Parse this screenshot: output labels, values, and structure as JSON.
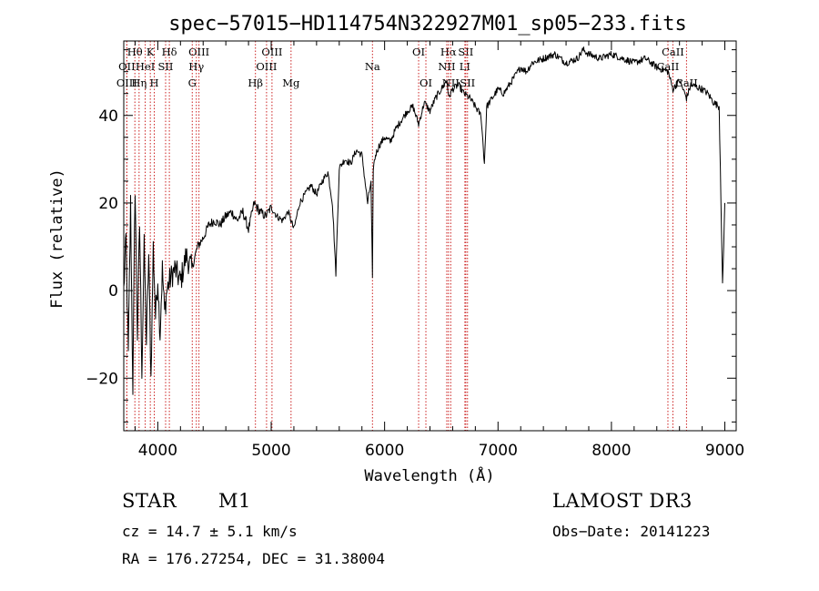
{
  "chart_data": {
    "type": "line",
    "title": "spec−57015−HD114754N322927M01_sp05−233.fits",
    "xlabel": "Wavelength (Å)",
    "ylabel": "Flux (relative)",
    "xlim": [
      3700,
      9100
    ],
    "ylim": [
      -32,
      57
    ],
    "xticks": [
      4000,
      5000,
      6000,
      7000,
      8000,
      9000
    ],
    "xtick_labels": [
      "4000",
      "5000",
      "6000",
      "7000",
      "8000",
      "9000"
    ],
    "yticks": [
      -20,
      0,
      20,
      40
    ],
    "ytick_labels": [
      "−20",
      "0",
      "20",
      "40"
    ],
    "grid": false,
    "series": [
      {
        "name": "flux",
        "x": [
          3700,
          3720,
          3740,
          3760,
          3780,
          3800,
          3820,
          3840,
          3860,
          3880,
          3900,
          3920,
          3940,
          3960,
          3980,
          4000,
          4020,
          4040,
          4060,
          4080,
          4100,
          4150,
          4200,
          4250,
          4300,
          4350,
          4400,
          4450,
          4500,
          4550,
          4600,
          4650,
          4700,
          4750,
          4800,
          4850,
          4900,
          4950,
          5000,
          5050,
          5100,
          5150,
          5200,
          5250,
          5300,
          5350,
          5400,
          5450,
          5500,
          5540,
          5570,
          5600,
          5650,
          5700,
          5750,
          5800,
          5850,
          5880,
          5893,
          5900,
          5920,
          5950,
          6000,
          6050,
          6100,
          6150,
          6200,
          6250,
          6300,
          6350,
          6400,
          6450,
          6500,
          6550,
          6563,
          6600,
          6650,
          6700,
          6750,
          6800,
          6850,
          6880,
          6900,
          6950,
          7000,
          7050,
          7100,
          7150,
          7200,
          7250,
          7300,
          7400,
          7500,
          7600,
          7700,
          7750,
          7800,
          7900,
          8000,
          8100,
          8200,
          8300,
          8400,
          8500,
          8542,
          8600,
          8662,
          8700,
          8800,
          8850,
          8900,
          8950,
          8980,
          9000
        ],
        "y": [
          0,
          12,
          -15,
          20,
          -22,
          24,
          -10,
          15,
          -18,
          10,
          -12,
          8,
          -20,
          10,
          -6,
          3,
          -10,
          5,
          -5,
          0,
          2,
          5,
          2,
          8,
          5,
          10,
          12,
          15,
          16,
          15,
          17,
          18,
          16,
          18,
          14,
          20,
          18,
          17,
          19,
          17,
          16,
          18,
          14,
          20,
          22,
          24,
          22,
          25,
          27,
          20,
          4,
          28,
          30,
          29,
          32,
          31,
          20,
          25,
          3,
          28,
          31,
          33,
          35,
          34,
          37,
          39,
          41,
          42,
          38,
          43,
          41,
          44,
          46,
          48,
          44,
          46,
          47,
          45,
          44,
          42,
          40,
          29,
          42,
          44,
          46,
          45,
          47,
          49,
          51,
          50,
          52,
          53,
          54,
          52,
          53,
          55,
          54,
          53,
          54,
          53,
          52,
          53,
          51,
          50,
          46,
          48,
          44,
          47,
          46,
          45,
          43,
          42,
          1,
          20
        ]
      }
    ],
    "emission_lines": [
      {
        "label": "Hθ",
        "x": 3798,
        "row": 1
      },
      {
        "label": "OII",
        "x": 3727,
        "row": 2
      },
      {
        "label": "OIII",
        "x": 3727,
        "row": 3
      },
      {
        "label": "K",
        "x": 3934,
        "row": 1
      },
      {
        "label": "HeI",
        "x": 3889,
        "row": 2
      },
      {
        "label": "Hη",
        "x": 3835,
        "row": 3
      },
      {
        "label": "H",
        "x": 3969,
        "row": 3
      },
      {
        "label": "SII",
        "x": 4069,
        "row": 2
      },
      {
        "label": "Hδ",
        "x": 4102,
        "row": 1
      },
      {
        "label": "OIII",
        "x": 4363,
        "row": 1
      },
      {
        "label": "Hγ",
        "x": 4340,
        "row": 2
      },
      {
        "label": "G",
        "x": 4304,
        "row": 3
      },
      {
        "label": "Hβ",
        "x": 4861,
        "row": 3
      },
      {
        "label": "OIII",
        "x": 5007,
        "row": 1
      },
      {
        "label": "OIII",
        "x": 4959,
        "row": 2
      },
      {
        "label": "Mg",
        "x": 5175,
        "row": 3
      },
      {
        "label": "Na",
        "x": 5893,
        "row": 2
      },
      {
        "label": "OI",
        "x": 6300,
        "row": 1
      },
      {
        "label": "OI",
        "x": 6364,
        "row": 3
      },
      {
        "label": "Hα",
        "x": 6563,
        "row": 1
      },
      {
        "label": "SII",
        "x": 6716,
        "row": 1
      },
      {
        "label": "NII",
        "x": 6548,
        "row": 2
      },
      {
        "label": "LI",
        "x": 6708,
        "row": 2
      },
      {
        "label": "NII",
        "x": 6583,
        "row": 3
      },
      {
        "label": "SII",
        "x": 6731,
        "row": 3
      },
      {
        "label": "CaII",
        "x": 8542,
        "row": 1
      },
      {
        "label": "CaII",
        "x": 8498,
        "row": 2
      },
      {
        "label": "CaII",
        "x": 8662,
        "row": 3
      }
    ]
  },
  "info": {
    "object_class": "STAR",
    "subclass": "M1",
    "survey": "LAMOST DR3",
    "cz": "cz = 14.7 ± 5.1 km/s",
    "obs_date": "Obs−Date: 20141223",
    "radec": "RA = 176.27254, DEC =  31.38004"
  },
  "colors": {
    "line_marker": "#cc2222",
    "spectrum": "#000000",
    "axes": "#000000"
  }
}
